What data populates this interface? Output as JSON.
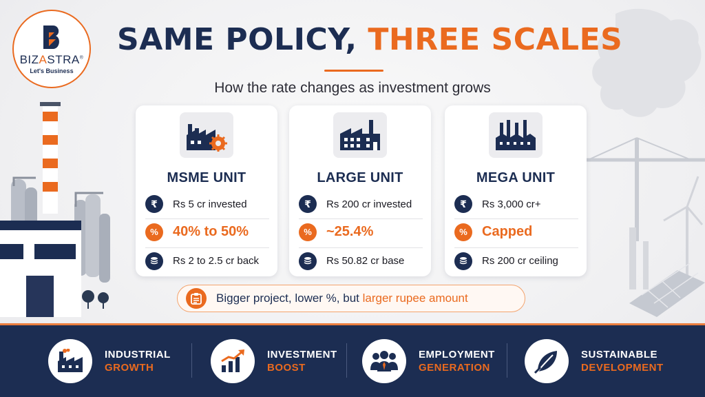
{
  "brand": {
    "name_part1": "BIZ",
    "name_accent": "A",
    "name_part2": "STRA",
    "registered": "®",
    "tagline": "Let's Business"
  },
  "header": {
    "title_part1": "SAME POLICY,",
    "title_part2": "THREE SCALES",
    "subtitle": "How the rate changes as investment grows"
  },
  "cards": [
    {
      "icon": "factory-gear-icon",
      "title": "MSME UNIT",
      "invested": "Rs 5 cr invested",
      "rate": "40% to 50%",
      "amount": "Rs 2 to 2.5 cr back"
    },
    {
      "icon": "large-factory-icon",
      "title": "LARGE UNIT",
      "invested": "Rs 200 cr invested",
      "rate": "~25.4%",
      "amount": "Rs 50.82 cr base"
    },
    {
      "icon": "mega-plant-icon",
      "title": "MEGA UNIT",
      "invested": "Rs 3,000 cr+",
      "rate": "Capped",
      "amount": "Rs 200 cr ceiling"
    }
  ],
  "row_icons": {
    "invested": "₹",
    "rate": "%",
    "amount": "coins-icon"
  },
  "summary": {
    "icon": "clipboard-icon",
    "text_main": "Bigger project, lower %, but ",
    "text_highlight": "larger rupee amount"
  },
  "footer": [
    {
      "icon": "factory-icon",
      "line1": "INDUSTRIAL",
      "line2": "GROWTH"
    },
    {
      "icon": "growth-chart-icon",
      "line1": "INVESTMENT",
      "line2": "BOOST"
    },
    {
      "icon": "people-icon",
      "line1": "EMPLOYMENT",
      "line2": "GENERATION"
    },
    {
      "icon": "leaf-icon",
      "line1": "SUSTAINABLE",
      "line2": "DEVELOPMENT"
    }
  ],
  "colors": {
    "navy": "#1c2d52",
    "orange": "#ea6a1f",
    "background": "#f2f2f4"
  }
}
